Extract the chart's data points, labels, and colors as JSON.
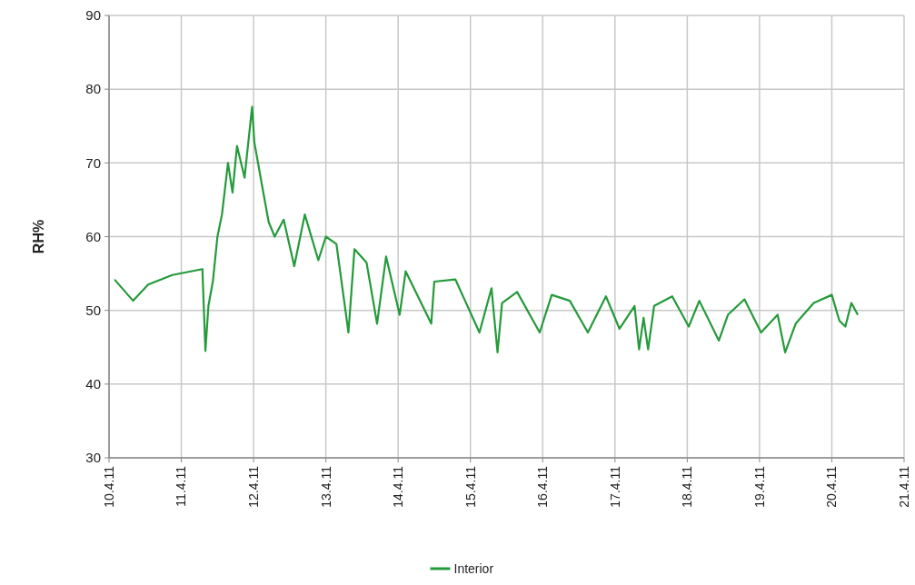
{
  "chart_data": {
    "type": "line",
    "ylabel": "RH%",
    "ylim": [
      30,
      90
    ],
    "yticks": [
      30,
      40,
      50,
      60,
      70,
      80,
      90
    ],
    "xlim": [
      "--04-10",
      "--04-21"
    ],
    "xticks": [
      {
        "value": "--04-10",
        "label": "10.4.11"
      },
      {
        "value": "--04-11",
        "label": "11.4.11"
      },
      {
        "value": "--04-12",
        "label": "12.4.11"
      },
      {
        "value": "--04-13",
        "label": "13.4.11"
      },
      {
        "value": "--04-14",
        "label": "14.4.11"
      },
      {
        "value": "--04-15",
        "label": "15.4.11"
      },
      {
        "value": "--04-16",
        "label": "16.4.11"
      },
      {
        "value": "--04-17",
        "label": "17.4.11"
      },
      {
        "value": "--04-18",
        "label": "18.4.11"
      },
      {
        "value": "--04-19",
        "label": "19.4.11"
      },
      {
        "value": "--04-20",
        "label": "20.4.11"
      },
      {
        "value": "--04-21",
        "label": "21.4.11"
      }
    ],
    "grid": true,
    "legend": "bottom",
    "line_style": "solid",
    "x": [
      "--04-10T02:00",
      "--04-10T08:00",
      "--04-10T13:00",
      "--04-10T21:00",
      "--04-11T07:00",
      "--04-11T08:00",
      "--04-11T09:00",
      "--04-11T10:30",
      "--04-11T12:00",
      "--04-11T13:30",
      "--04-11T15:30",
      "--04-11T17:00",
      "--04-11T18:30",
      "--04-11T21:00",
      "--04-11T23:30",
      "--04-12T00:15",
      "--04-12T03:00",
      "--04-12T05:00",
      "--04-12T07:00",
      "--04-12T10:00",
      "--04-12T13:30",
      "--04-12T17:00",
      "--04-12T21:30",
      "--04-13T00:00",
      "--04-13T03:30",
      "--04-13T07:30",
      "--04-13T09:30",
      "--04-13T13:30",
      "--04-13T17:00",
      "--04-13T20:00",
      "--04-14T00:30",
      "--04-14T02:30",
      "--04-14T11:00",
      "--04-14T12:00",
      "--04-14T19:00",
      "--04-15T03:00",
      "--04-15T07:00",
      "--04-15T09:00",
      "--04-15T10:30",
      "--04-15T15:30",
      "--04-15T23:00",
      "--04-16T03:00",
      "--04-16T09:00",
      "--04-16T15:00",
      "--04-16T21:00",
      "--04-17T01:30",
      "--04-17T06:30",
      "--04-17T08:00",
      "--04-17T09:30",
      "--04-17T11:00",
      "--04-17T13:00",
      "--04-17T19:00",
      "--04-18T00:30",
      "--04-18T04:00",
      "--04-18T10:30",
      "--04-18T13:30",
      "--04-18T19:00",
      "--04-19T00:30",
      "--04-19T06:00",
      "--04-19T08:30",
      "--04-19T12:00",
      "--04-19T18:00",
      "--04-20T00:00",
      "--04-20T02:30",
      "--04-20T04:30",
      "--04-20T06:30",
      "--04-20T08:30"
    ],
    "series": [
      {
        "name": "Interior",
        "color": "#249a3a",
        "values": [
          54.1,
          51.3,
          53.5,
          54.8,
          55.6,
          44.5,
          50.6,
          54,
          60,
          63,
          70,
          66,
          72.3,
          68,
          77.6,
          72.8,
          66.5,
          62,
          60,
          62.3,
          56,
          63,
          56.8,
          60,
          59,
          47,
          58.3,
          56.5,
          48.2,
          57.3,
          49.4,
          55.3,
          48.2,
          53.9,
          54.2,
          47,
          53,
          44.3,
          51,
          52.5,
          47,
          52.1,
          51.3,
          47,
          51.9,
          47.5,
          50.6,
          44.7,
          49,
          44.7,
          50.6,
          51.9,
          47.8,
          51.3,
          45.9,
          49.4,
          51.5,
          47,
          49.4,
          44.3,
          48.2,
          51,
          52.1,
          48.6,
          47.8,
          51,
          49.5
        ]
      }
    ]
  }
}
